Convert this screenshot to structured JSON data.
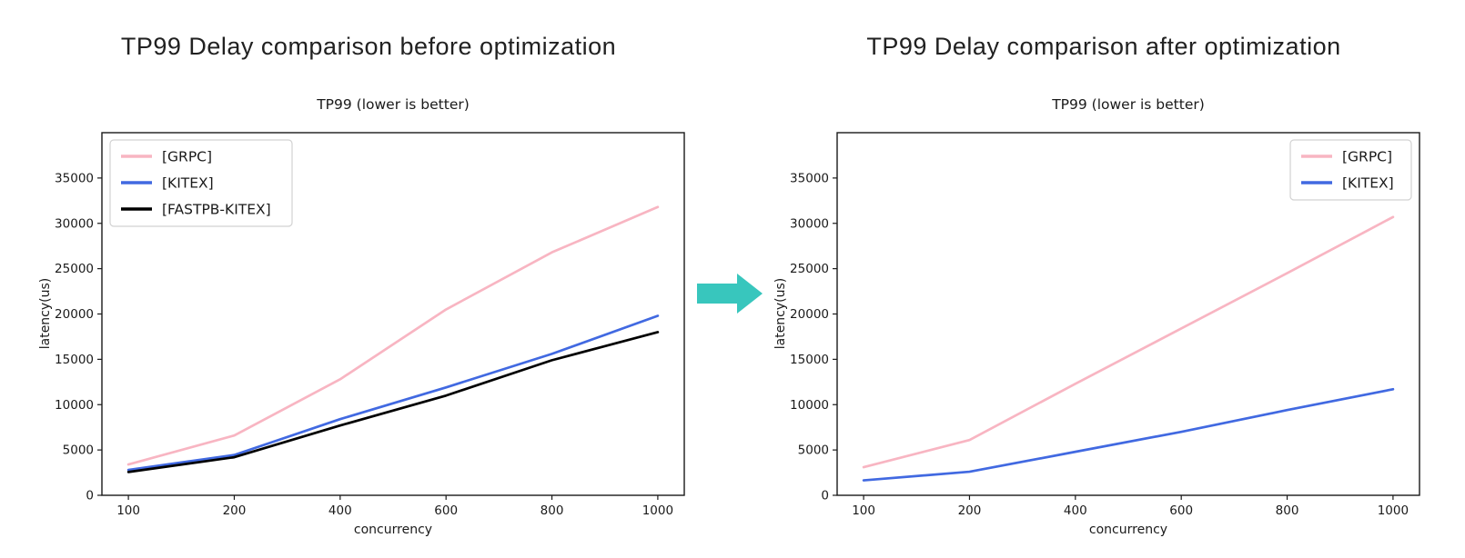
{
  "page": {
    "background": "#ffffff"
  },
  "figures": [
    {
      "heading": "TP99 Delay comparison before optimization"
    },
    {
      "heading": "TP99 Delay comparison after optimization"
    }
  ],
  "arrow": {
    "meaning": "before-to-after transition",
    "color": "#38c6bd",
    "direction": "right"
  },
  "chart_data": [
    {
      "type": "line",
      "title": "TP99 (lower is better)",
      "xlabel": "concurrency",
      "ylabel": "latency(us)",
      "categories": [
        "100",
        "200",
        "400",
        "600",
        "800",
        "1000"
      ],
      "ylim": [
        0,
        40000
      ],
      "yticks": [
        0,
        5000,
        10000,
        15000,
        20000,
        25000,
        30000,
        35000
      ],
      "grid": false,
      "legend_position": "upper-left",
      "series": [
        {
          "name": "[GRPC]",
          "color": "#f8b5c2",
          "values": [
            3400,
            6600,
            12800,
            20500,
            26800,
            31800
          ]
        },
        {
          "name": "[KITEX]",
          "color": "#4169e1",
          "values": [
            2800,
            4450,
            8400,
            11900,
            15600,
            19800
          ]
        },
        {
          "name": "[FASTPB-KITEX]",
          "color": "#000000",
          "values": [
            2570,
            4200,
            7700,
            11000,
            14900,
            18000
          ]
        }
      ]
    },
    {
      "type": "line",
      "title": "TP99 (lower is better)",
      "xlabel": "concurrency",
      "ylabel": "latency(us)",
      "categories": [
        "100",
        "200",
        "400",
        "600",
        "800",
        "1000"
      ],
      "ylim": [
        0,
        40000
      ],
      "yticks": [
        0,
        5000,
        10000,
        15000,
        20000,
        25000,
        30000,
        35000
      ],
      "grid": false,
      "legend_position": "upper-right",
      "series": [
        {
          "name": "[GRPC]",
          "color": "#f8b5c2",
          "values": [
            3100,
            6100,
            12300,
            18400,
            24500,
            30700
          ]
        },
        {
          "name": "[KITEX]",
          "color": "#4169e1",
          "values": [
            1650,
            2600,
            4800,
            7000,
            9400,
            11700
          ]
        }
      ]
    }
  ]
}
